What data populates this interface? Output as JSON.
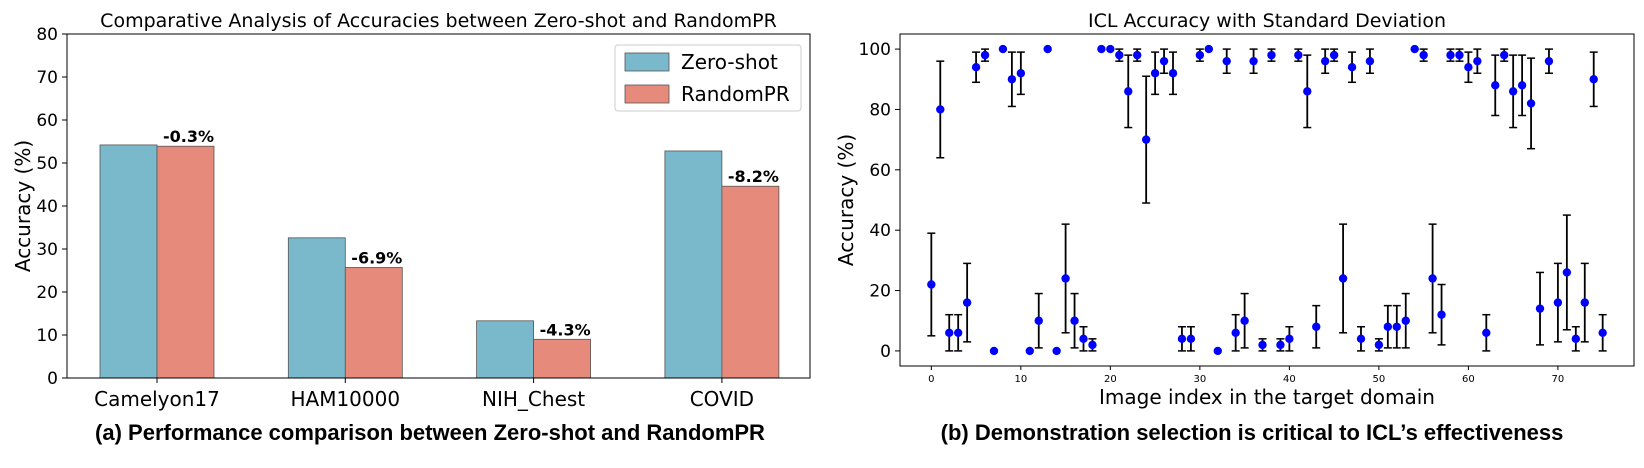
{
  "chart_data": [
    {
      "type": "bar",
      "title": "Comparative Analysis of Accuracies between Zero-shot and RandomPR",
      "xlabel": "",
      "ylabel": "Accuracy (%)",
      "categories": [
        "Camelyon17",
        "HAM10000",
        "NIH_Chest",
        "COVID"
      ],
      "series": [
        {
          "name": "Zero-shot",
          "values": [
            54.2,
            32.6,
            13.3,
            52.8
          ],
          "color": "#7ab8cb"
        },
        {
          "name": "RandomPR",
          "values": [
            53.9,
            25.7,
            9.0,
            44.6
          ],
          "color": "#e68a7b"
        }
      ],
      "annotations": [
        "-0.3%",
        "-6.9%",
        "-4.3%",
        "-8.2%"
      ],
      "ylim": [
        0,
        80
      ],
      "yticks": [
        0,
        10,
        20,
        30,
        40,
        50,
        60,
        70,
        80
      ],
      "legend": "top-right",
      "grid": false
    },
    {
      "type": "scatter",
      "title": "ICL Accuracy with Standard Deviation",
      "xlabel": "Image index in the target domain",
      "ylabel": "Accuracy (%)",
      "xlim": [
        -3.5,
        78.5
      ],
      "ylim": [
        -5,
        105
      ],
      "xticks": [
        0,
        10,
        20,
        30,
        40,
        50,
        60,
        70
      ],
      "yticks": [
        0,
        20,
        40,
        60,
        80,
        100
      ],
      "grid": false,
      "marker_color": "#0000ff",
      "errorbar_color": "#000000",
      "points": [
        {
          "x": 0,
          "y": 22,
          "err": 17
        },
        {
          "x": 1,
          "y": 80,
          "err": 16
        },
        {
          "x": 2,
          "y": 6,
          "err": 6
        },
        {
          "x": 3,
          "y": 6,
          "err": 6
        },
        {
          "x": 4,
          "y": 16,
          "err": 13
        },
        {
          "x": 5,
          "y": 94,
          "err": 5
        },
        {
          "x": 6,
          "y": 98,
          "err": 2
        },
        {
          "x": 7,
          "y": 0,
          "err": 0
        },
        {
          "x": 8,
          "y": 100,
          "err": 0
        },
        {
          "x": 9,
          "y": 90,
          "err": 9
        },
        {
          "x": 10,
          "y": 92,
          "err": 7
        },
        {
          "x": 11,
          "y": 0,
          "err": 0
        },
        {
          "x": 12,
          "y": 10,
          "err": 9
        },
        {
          "x": 13,
          "y": 100,
          "err": 0
        },
        {
          "x": 14,
          "y": 0,
          "err": 0
        },
        {
          "x": 15,
          "y": 24,
          "err": 18
        },
        {
          "x": 16,
          "y": 10,
          "err": 9
        },
        {
          "x": 17,
          "y": 4,
          "err": 4
        },
        {
          "x": 18,
          "y": 2,
          "err": 2
        },
        {
          "x": 19,
          "y": 100,
          "err": 0
        },
        {
          "x": 20,
          "y": 100,
          "err": 0
        },
        {
          "x": 21,
          "y": 98,
          "err": 2
        },
        {
          "x": 22,
          "y": 86,
          "err": 12
        },
        {
          "x": 23,
          "y": 98,
          "err": 2
        },
        {
          "x": 24,
          "y": 70,
          "err": 21
        },
        {
          "x": 25,
          "y": 92,
          "err": 7
        },
        {
          "x": 26,
          "y": 96,
          "err": 4
        },
        {
          "x": 27,
          "y": 92,
          "err": 7
        },
        {
          "x": 28,
          "y": 4,
          "err": 4
        },
        {
          "x": 29,
          "y": 4,
          "err": 4
        },
        {
          "x": 30,
          "y": 98,
          "err": 2
        },
        {
          "x": 31,
          "y": 100,
          "err": 0
        },
        {
          "x": 32,
          "y": 0,
          "err": 0
        },
        {
          "x": 33,
          "y": 96,
          "err": 4
        },
        {
          "x": 34,
          "y": 6,
          "err": 6
        },
        {
          "x": 35,
          "y": 10,
          "err": 9
        },
        {
          "x": 36,
          "y": 96,
          "err": 4
        },
        {
          "x": 37,
          "y": 2,
          "err": 2
        },
        {
          "x": 38,
          "y": 98,
          "err": 2
        },
        {
          "x": 39,
          "y": 2,
          "err": 2
        },
        {
          "x": 40,
          "y": 4,
          "err": 4
        },
        {
          "x": 41,
          "y": 98,
          "err": 2
        },
        {
          "x": 42,
          "y": 86,
          "err": 12
        },
        {
          "x": 43,
          "y": 8,
          "err": 7
        },
        {
          "x": 44,
          "y": 96,
          "err": 4
        },
        {
          "x": 45,
          "y": 98,
          "err": 2
        },
        {
          "x": 46,
          "y": 24,
          "err": 18
        },
        {
          "x": 47,
          "y": 94,
          "err": 5
        },
        {
          "x": 48,
          "y": 4,
          "err": 4
        },
        {
          "x": 49,
          "y": 96,
          "err": 4
        },
        {
          "x": 50,
          "y": 2,
          "err": 2
        },
        {
          "x": 51,
          "y": 8,
          "err": 7
        },
        {
          "x": 52,
          "y": 8,
          "err": 7
        },
        {
          "x": 53,
          "y": 10,
          "err": 9
        },
        {
          "x": 54,
          "y": 100,
          "err": 0
        },
        {
          "x": 55,
          "y": 98,
          "err": 2
        },
        {
          "x": 56,
          "y": 24,
          "err": 18
        },
        {
          "x": 57,
          "y": 12,
          "err": 10
        },
        {
          "x": 58,
          "y": 98,
          "err": 2
        },
        {
          "x": 59,
          "y": 98,
          "err": 2
        },
        {
          "x": 60,
          "y": 94,
          "err": 5
        },
        {
          "x": 61,
          "y": 96,
          "err": 4
        },
        {
          "x": 62,
          "y": 6,
          "err": 6
        },
        {
          "x": 63,
          "y": 88,
          "err": 10
        },
        {
          "x": 64,
          "y": 98,
          "err": 2
        },
        {
          "x": 65,
          "y": 86,
          "err": 12
        },
        {
          "x": 66,
          "y": 88,
          "err": 10
        },
        {
          "x": 67,
          "y": 82,
          "err": 15
        },
        {
          "x": 68,
          "y": 14,
          "err": 12
        },
        {
          "x": 69,
          "y": 96,
          "err": 4
        },
        {
          "x": 70,
          "y": 16,
          "err": 13
        },
        {
          "x": 71,
          "y": 26,
          "err": 19
        },
        {
          "x": 72,
          "y": 4,
          "err": 4
        },
        {
          "x": 73,
          "y": 16,
          "err": 13
        },
        {
          "x": 74,
          "y": 90,
          "err": 9
        },
        {
          "x": 75,
          "y": 6,
          "err": 6
        }
      ]
    }
  ],
  "captions": {
    "a": "(a) Performance comparison between Zero-shot and RandomPR",
    "b": "(b) Demonstration selection is critical to ICL’s effectiveness"
  }
}
